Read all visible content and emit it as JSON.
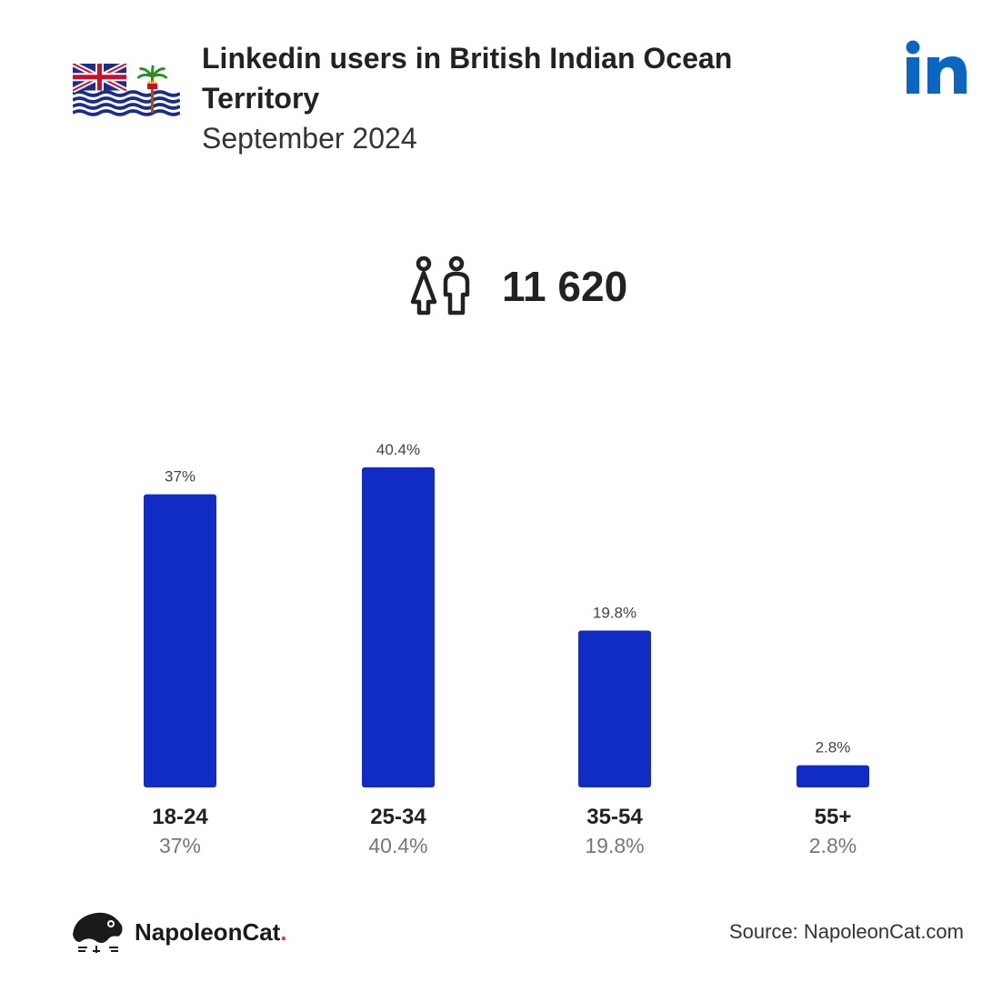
{
  "header": {
    "title": "Linkedin users in British Indian Ocean Territory",
    "subtitle": "September 2024",
    "flag_icon": "british-indian-ocean-territory-flag-icon",
    "logo_text": "in",
    "logo_color": "#0a66c2"
  },
  "summary": {
    "total_users": "11 620",
    "icon": "people-icon"
  },
  "chart_data": {
    "type": "bar",
    "categories": [
      "18-24",
      "25-34",
      "35-54",
      "55+"
    ],
    "values": [
      37,
      40.4,
      19.8,
      2.8
    ],
    "value_labels": [
      "37%",
      "40.4%",
      "19.8%",
      "2.8%"
    ],
    "bar_color": "#102cc4",
    "ylim": [
      0,
      40.4
    ],
    "grid": false,
    "legend": "none"
  },
  "footer": {
    "brand_name": "NapoleonCat",
    "brand_dot": ".",
    "source": "Source: NapoleonCat.com"
  }
}
